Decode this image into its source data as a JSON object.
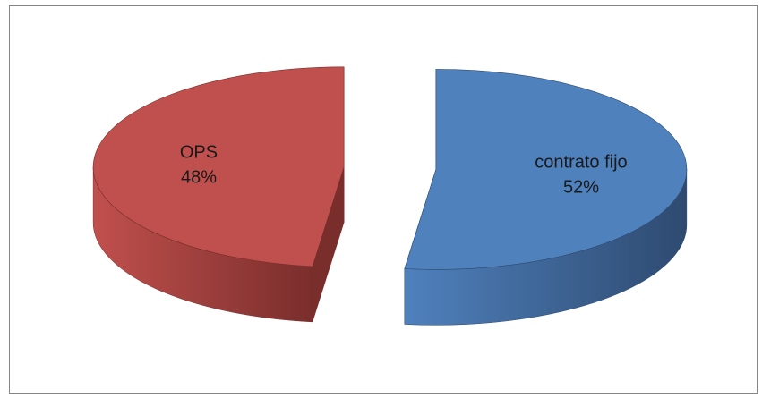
{
  "chart_data": {
    "type": "pie",
    "style": "3d-exploded",
    "title": "",
    "slices": [
      {
        "name": "contrato fijo",
        "value": 52,
        "label": "52%",
        "color": "#4F81BD",
        "side_color": "#2E4A70"
      },
      {
        "name": "OPS",
        "value": 48,
        "label": "48%",
        "color": "#C0504D",
        "side_color": "#7A2E2C"
      }
    ],
    "legend": "none"
  }
}
